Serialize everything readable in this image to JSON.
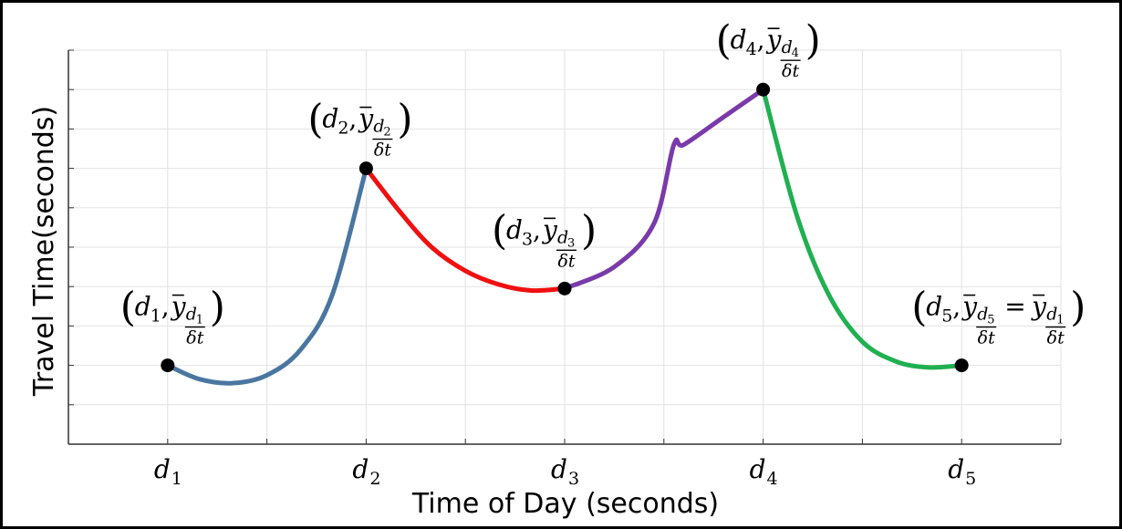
{
  "chart_data": {
    "type": "line",
    "title": "",
    "xlabel": "Time of Day (seconds)",
    "ylabel": "Travel Time(seconds)",
    "grid": true,
    "legend": "none",
    "xlim": [
      0,
      5
    ],
    "ylim": [
      0,
      10
    ],
    "x_ticks": [
      0,
      0.5,
      1,
      1.5,
      2,
      2.5,
      3,
      3.5,
      4,
      4.5,
      5
    ],
    "y_ticks": [
      1,
      2,
      3,
      4,
      5,
      6,
      7,
      8,
      9,
      10
    ],
    "x_tick_labels": [
      {
        "x": 0.5,
        "base": "d",
        "sub": "1"
      },
      {
        "x": 1.5,
        "base": "d",
        "sub": "2"
      },
      {
        "x": 2.5,
        "base": "d",
        "sub": "3"
      },
      {
        "x": 3.5,
        "base": "d",
        "sub": "4"
      },
      {
        "x": 4.5,
        "base": "d",
        "sub": "5"
      }
    ],
    "series": [
      {
        "color": "#4a76a0",
        "points": [
          [
            0.5,
            2.0
          ],
          [
            0.66,
            1.65
          ],
          [
            0.83,
            1.55
          ],
          [
            1.0,
            1.75
          ],
          [
            1.17,
            2.4
          ],
          [
            1.33,
            3.8
          ],
          [
            1.5,
            7.0
          ]
        ]
      },
      {
        "color": "#f01010",
        "points": [
          [
            1.5,
            7.0
          ],
          [
            1.67,
            5.9
          ],
          [
            1.83,
            5.0
          ],
          [
            2.0,
            4.4
          ],
          [
            2.17,
            4.05
          ],
          [
            2.33,
            3.9
          ],
          [
            2.5,
            3.95
          ]
        ]
      },
      {
        "color": "#7a3aaa",
        "points": [
          [
            2.5,
            3.95
          ],
          [
            2.75,
            4.5
          ],
          [
            2.95,
            5.6
          ],
          [
            3.05,
            7.6
          ],
          [
            3.1,
            7.6
          ],
          [
            3.3,
            8.3
          ],
          [
            3.5,
            9.0
          ]
        ]
      },
      {
        "color": "#20b050",
        "points": [
          [
            3.5,
            9.0
          ],
          [
            3.67,
            5.8
          ],
          [
            3.83,
            3.8
          ],
          [
            4.0,
            2.6
          ],
          [
            4.17,
            2.1
          ],
          [
            4.33,
            1.95
          ],
          [
            4.5,
            2.0
          ]
        ]
      }
    ],
    "markers": [
      {
        "x": 0.5,
        "y": 2.0
      },
      {
        "x": 1.5,
        "y": 7.0
      },
      {
        "x": 2.5,
        "y": 3.95
      },
      {
        "x": 3.5,
        "y": 9.0
      },
      {
        "x": 4.5,
        "y": 2.0
      }
    ],
    "annotations": [
      {
        "d": "1",
        "ysub": "d",
        "ysubsub": "1",
        "frac_den": "δt",
        "x": 0.5,
        "y": 2.0
      },
      {
        "d": "2",
        "ysub": "d",
        "ysubsub": "2",
        "frac_den": "δt",
        "x": 1.5,
        "y": 7.0
      },
      {
        "d": "3",
        "ysub": "d",
        "ysubsub": "3",
        "frac_den": "δt",
        "x": 2.5,
        "y": 3.95
      },
      {
        "d": "4",
        "ysub": "d",
        "ysubsub": "4",
        "frac_den": "δt",
        "x": 3.5,
        "y": 9.0
      },
      {
        "d": "5",
        "ysub": "d",
        "ysubsub": "5",
        "frac_den": "δt",
        "x": 4.5,
        "y": 2.0,
        "equals": {
          "ysub": "d",
          "ysubsub": "1",
          "frac_den": "δt"
        }
      }
    ]
  }
}
